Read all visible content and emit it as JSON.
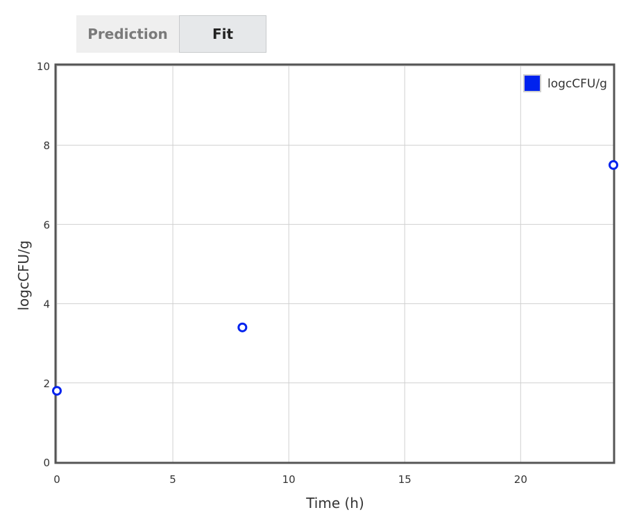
{
  "tabs": {
    "prediction_label": "Prediction",
    "fit_label": "Fit",
    "active": "Fit"
  },
  "chart_data": {
    "type": "scatter",
    "xlabel": "Time (h)",
    "ylabel": "logcCFU/g",
    "xlim": [
      0,
      24
    ],
    "ylim": [
      0,
      10
    ],
    "xticks": [
      "0",
      "5",
      "10",
      "15",
      "20"
    ],
    "yticks": [
      "0",
      "2",
      "4",
      "6",
      "8",
      "10"
    ],
    "grid": true,
    "legend_position": "top-right",
    "series": [
      {
        "name": "logcCFU/g",
        "color": "#0022ee",
        "x": [
          0,
          8,
          24
        ],
        "y": [
          1.8,
          3.4,
          7.5
        ]
      }
    ]
  }
}
